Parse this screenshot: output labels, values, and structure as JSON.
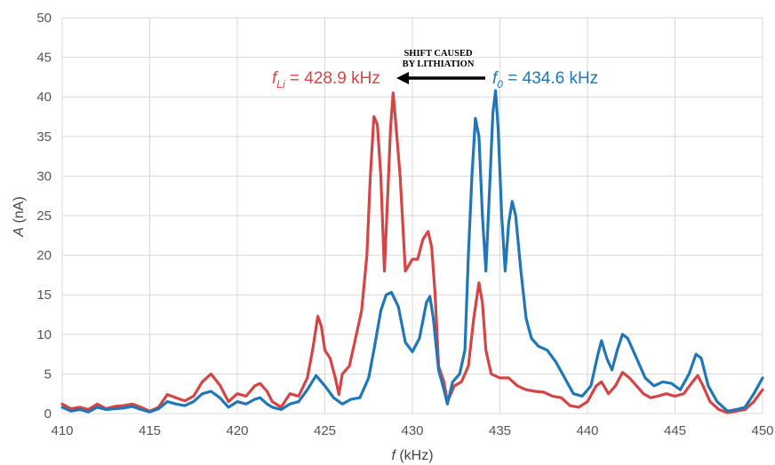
{
  "chart_data": {
    "type": "line",
    "title": "",
    "xlabel_italic": "f",
    "xlabel_unit": " (kHz)",
    "ylabel_italic": "A",
    "ylabel_unit": " (nA)",
    "xlim": [
      410,
      450
    ],
    "ylim": [
      0,
      50
    ],
    "xticks": [
      410,
      415,
      420,
      425,
      430,
      435,
      440,
      445,
      450
    ],
    "yticks": [
      0,
      5,
      10,
      15,
      20,
      25,
      30,
      35,
      40,
      45,
      50
    ],
    "grid": true,
    "series": [
      {
        "color": "#d64545",
        "points": [
          [
            410,
            1.2
          ],
          [
            410.5,
            0.6
          ],
          [
            411,
            0.8
          ],
          [
            411.5,
            0.5
          ],
          [
            412,
            1.2
          ],
          [
            412.5,
            0.6
          ],
          [
            413,
            0.9
          ],
          [
            413.5,
            1.0
          ],
          [
            414,
            1.2
          ],
          [
            414.5,
            0.8
          ],
          [
            415,
            0.3
          ],
          [
            415.5,
            0.8
          ],
          [
            416,
            2.4
          ],
          [
            416.5,
            2.0
          ],
          [
            417,
            1.6
          ],
          [
            417.5,
            2.2
          ],
          [
            418,
            4.0
          ],
          [
            418.5,
            5.0
          ],
          [
            419,
            3.6
          ],
          [
            419.5,
            1.5
          ],
          [
            420,
            2.5
          ],
          [
            420.5,
            2.2
          ],
          [
            421,
            3.5
          ],
          [
            421.3,
            3.8
          ],
          [
            421.7,
            2.8
          ],
          [
            422,
            1.5
          ],
          [
            422.5,
            0.8
          ],
          [
            423,
            2.5
          ],
          [
            423.5,
            2.2
          ],
          [
            424,
            4.5
          ],
          [
            424.3,
            8.0
          ],
          [
            424.6,
            12.3
          ],
          [
            424.8,
            11.0
          ],
          [
            425,
            8.0
          ],
          [
            425.3,
            7.0
          ],
          [
            425.6,
            4.5
          ],
          [
            425.8,
            2.4
          ],
          [
            426,
            5.0
          ],
          [
            426.4,
            6.0
          ],
          [
            426.8,
            10.0
          ],
          [
            427.1,
            13.0
          ],
          [
            427.4,
            20.0
          ],
          [
            427.6,
            30.0
          ],
          [
            427.8,
            37.5
          ],
          [
            428,
            36.5
          ],
          [
            428.2,
            30.0
          ],
          [
            428.4,
            18.0
          ],
          [
            428.6,
            28.0
          ],
          [
            428.75,
            36.0
          ],
          [
            428.9,
            40.5
          ],
          [
            429,
            38.0
          ],
          [
            429.3,
            30.0
          ],
          [
            429.6,
            18.0
          ],
          [
            430,
            19.5
          ],
          [
            430.3,
            19.5
          ],
          [
            430.6,
            22.0
          ],
          [
            430.9,
            23.0
          ],
          [
            431.1,
            21.0
          ],
          [
            431.3,
            15.0
          ],
          [
            431.5,
            6.0
          ],
          [
            431.8,
            4.0
          ],
          [
            432,
            1.5
          ],
          [
            432.4,
            3.5
          ],
          [
            432.8,
            4.0
          ],
          [
            433.2,
            6.0
          ],
          [
            433.5,
            12.0
          ],
          [
            433.8,
            16.5
          ],
          [
            434,
            14.0
          ],
          [
            434.2,
            8.0
          ],
          [
            434.5,
            5.0
          ],
          [
            435,
            4.5
          ],
          [
            435.5,
            4.5
          ],
          [
            436,
            3.5
          ],
          [
            436.5,
            3.0
          ],
          [
            437,
            2.8
          ],
          [
            437.5,
            2.7
          ],
          [
            438,
            2.2
          ],
          [
            438.5,
            2.0
          ],
          [
            439,
            1.0
          ],
          [
            439.5,
            0.8
          ],
          [
            440,
            1.5
          ],
          [
            440.5,
            3.5
          ],
          [
            440.8,
            4.0
          ],
          [
            441.2,
            2.5
          ],
          [
            441.6,
            3.5
          ],
          [
            442,
            5.2
          ],
          [
            442.4,
            4.5
          ],
          [
            442.8,
            3.5
          ],
          [
            443.2,
            2.5
          ],
          [
            443.6,
            2.0
          ],
          [
            444,
            2.2
          ],
          [
            444.5,
            2.5
          ],
          [
            445,
            2.2
          ],
          [
            445.5,
            2.5
          ],
          [
            446,
            4.0
          ],
          [
            446.3,
            4.8
          ],
          [
            446.6,
            3.5
          ],
          [
            447,
            1.5
          ],
          [
            447.5,
            0.5
          ],
          [
            448,
            0.1
          ],
          [
            448.5,
            0.3
          ],
          [
            449,
            0.5
          ],
          [
            449.5,
            1.5
          ],
          [
            450,
            3.0
          ]
        ]
      },
      {
        "color": "#1f77b8",
        "points": [
          [
            410,
            0.8
          ],
          [
            410.5,
            0.3
          ],
          [
            411,
            0.5
          ],
          [
            411.5,
            0.2
          ],
          [
            412,
            0.8
          ],
          [
            412.5,
            0.5
          ],
          [
            413,
            0.6
          ],
          [
            413.5,
            0.7
          ],
          [
            414,
            0.9
          ],
          [
            414.5,
            0.5
          ],
          [
            415,
            0.2
          ],
          [
            415.5,
            0.6
          ],
          [
            416,
            1.5
          ],
          [
            416.5,
            1.2
          ],
          [
            417,
            1.0
          ],
          [
            417.5,
            1.5
          ],
          [
            418,
            2.5
          ],
          [
            418.5,
            2.8
          ],
          [
            419,
            2.0
          ],
          [
            419.5,
            0.8
          ],
          [
            420,
            1.5
          ],
          [
            420.5,
            1.2
          ],
          [
            421,
            1.8
          ],
          [
            421.3,
            2.0
          ],
          [
            421.7,
            1.2
          ],
          [
            422,
            0.8
          ],
          [
            422.5,
            0.5
          ],
          [
            423,
            1.2
          ],
          [
            423.5,
            1.5
          ],
          [
            424,
            3.0
          ],
          [
            424.5,
            4.8
          ],
          [
            425,
            3.5
          ],
          [
            425.5,
            2.0
          ],
          [
            426,
            1.2
          ],
          [
            426.5,
            1.8
          ],
          [
            427,
            2.0
          ],
          [
            427.5,
            4.5
          ],
          [
            427.8,
            8.0
          ],
          [
            428.2,
            13.0
          ],
          [
            428.5,
            15.0
          ],
          [
            428.8,
            15.3
          ],
          [
            429.2,
            13.5
          ],
          [
            429.6,
            9.0
          ],
          [
            430,
            7.8
          ],
          [
            430.4,
            9.5
          ],
          [
            430.8,
            14.0
          ],
          [
            431,
            14.8
          ],
          [
            431.2,
            12.0
          ],
          [
            431.5,
            5.5
          ],
          [
            431.8,
            3.0
          ],
          [
            432,
            1.2
          ],
          [
            432.3,
            4.0
          ],
          [
            432.7,
            5.0
          ],
          [
            433,
            8.0
          ],
          [
            433.2,
            20.0
          ],
          [
            433.4,
            30.0
          ],
          [
            433.6,
            37.3
          ],
          [
            433.8,
            35.0
          ],
          [
            434,
            25.0
          ],
          [
            434.2,
            18.0
          ],
          [
            434.4,
            28.0
          ],
          [
            434.6,
            38.0
          ],
          [
            434.75,
            40.8
          ],
          [
            434.9,
            36.0
          ],
          [
            435.1,
            25.0
          ],
          [
            435.3,
            18.0
          ],
          [
            435.5,
            24.0
          ],
          [
            435.7,
            26.8
          ],
          [
            435.9,
            25.0
          ],
          [
            436.2,
            18.0
          ],
          [
            436.5,
            12.0
          ],
          [
            436.8,
            9.5
          ],
          [
            437.2,
            8.5
          ],
          [
            437.7,
            8.0
          ],
          [
            438.2,
            6.5
          ],
          [
            438.7,
            4.5
          ],
          [
            439.2,
            2.5
          ],
          [
            439.7,
            2.2
          ],
          [
            440.2,
            3.5
          ],
          [
            440.6,
            7.5
          ],
          [
            440.8,
            9.2
          ],
          [
            441.1,
            7.0
          ],
          [
            441.4,
            5.5
          ],
          [
            441.7,
            8.0
          ],
          [
            442,
            10.0
          ],
          [
            442.3,
            9.5
          ],
          [
            442.8,
            7.0
          ],
          [
            443.3,
            4.5
          ],
          [
            443.8,
            3.5
          ],
          [
            444.3,
            4.0
          ],
          [
            444.8,
            3.8
          ],
          [
            445.3,
            3.0
          ],
          [
            445.8,
            5.0
          ],
          [
            446.2,
            7.5
          ],
          [
            446.5,
            7.0
          ],
          [
            446.9,
            3.5
          ],
          [
            447.4,
            1.5
          ],
          [
            448,
            0.3
          ],
          [
            448.5,
            0.5
          ],
          [
            449,
            0.8
          ],
          [
            449.5,
            2.5
          ],
          [
            450,
            4.5
          ]
        ]
      }
    ],
    "annotations": {
      "red_label_main": "f",
      "red_label_sub": "Li",
      "red_label_value": " = 428.9 kHz",
      "blue_label_main": "f",
      "blue_label_sub": "0",
      "blue_label_value": " = 434.6 kHz",
      "shift_line1": "SHIFT CAUSED",
      "shift_line2": "BY LITHIATION",
      "red_color": "#d64545",
      "blue_color": "#1f77b8",
      "arrow_color": "#000000"
    }
  }
}
